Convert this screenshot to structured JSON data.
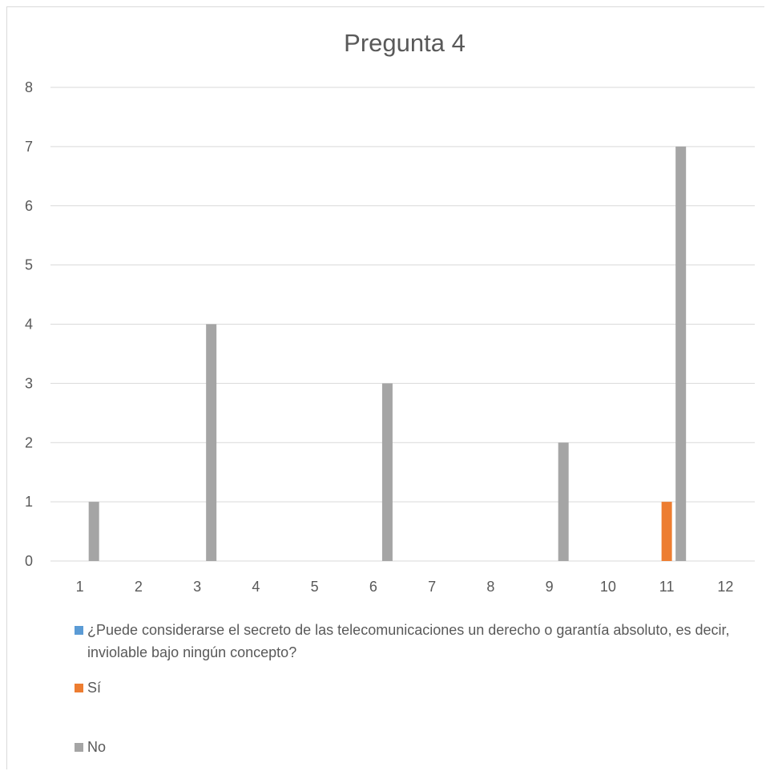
{
  "chart_data": {
    "type": "bar",
    "title": "Pregunta 4",
    "xlabel": "",
    "ylabel": "",
    "categories": [
      "1",
      "2",
      "3",
      "4",
      "5",
      "6",
      "7",
      "8",
      "9",
      "10",
      "11",
      "12"
    ],
    "yticks": [
      "0",
      "1",
      "2",
      "3",
      "4",
      "5",
      "6",
      "7",
      "8"
    ],
    "ylim": [
      0,
      8
    ],
    "grid": true,
    "legend_position": "bottom",
    "series": [
      {
        "name": "¿Puede considerarse el secreto de las telecomunicaciones un derecho o garantía absoluto, es decir, inviolable bajo ningún concepto?",
        "color": "#5b9bd5",
        "values": [
          0,
          0,
          0,
          0,
          0,
          0,
          0,
          0,
          0,
          0,
          0,
          0
        ]
      },
      {
        "name": "Sí",
        "color": "#ed7d31",
        "values": [
          0,
          0,
          0,
          0,
          0,
          0,
          0,
          0,
          0,
          0,
          1,
          0
        ]
      },
      {
        "name": "No",
        "color": "#a5a5a5",
        "values": [
          1,
          0,
          4,
          0,
          0,
          3,
          0,
          0,
          2,
          0,
          7,
          0
        ]
      }
    ]
  }
}
